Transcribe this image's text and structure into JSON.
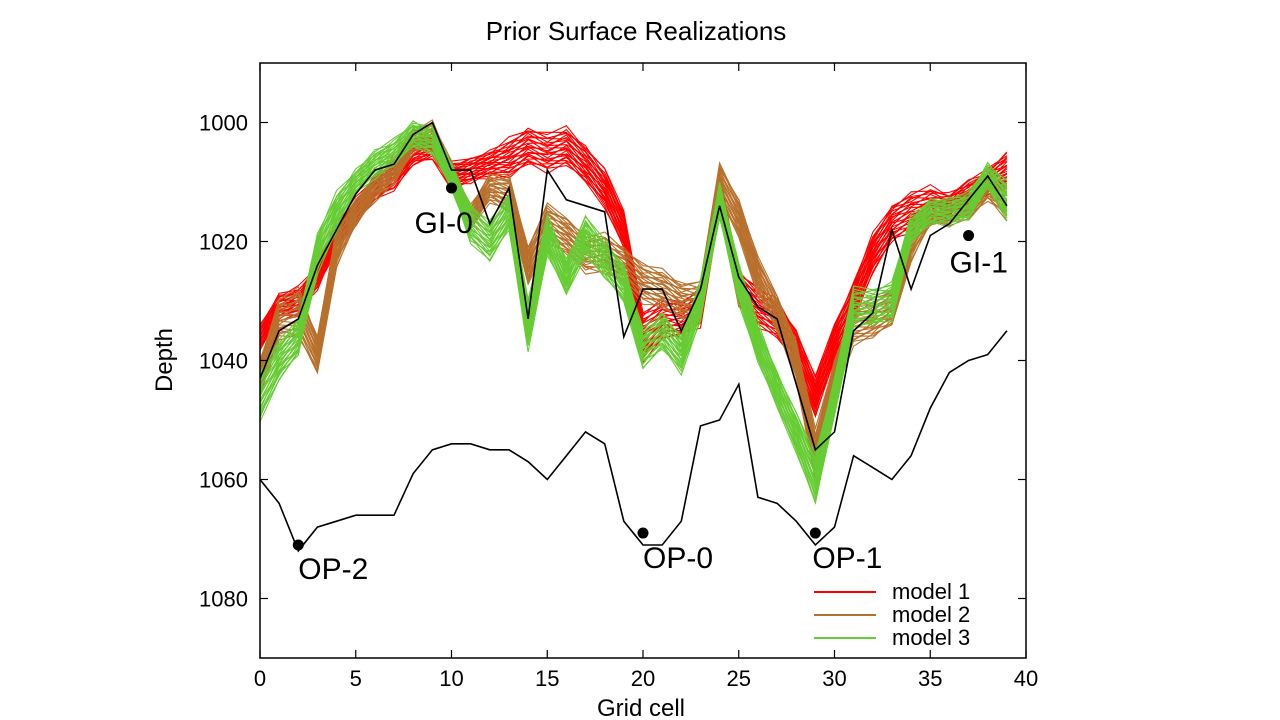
{
  "chart_data": {
    "type": "line",
    "title": "Prior Surface Realizations",
    "xlabel": "Grid cell",
    "ylabel": "Depth",
    "xlim": [
      0,
      40
    ],
    "ylim": [
      1090,
      990
    ],
    "y_inverted": true,
    "grid": false,
    "legend_position": "lower-right",
    "xticks": [
      "0",
      "5",
      "10",
      "15",
      "20",
      "25",
      "30",
      "35",
      "40"
    ],
    "yticks": [
      "1000",
      "1020",
      "1040",
      "1060",
      "1080"
    ],
    "x": [
      0,
      1,
      2,
      3,
      4,
      5,
      6,
      7,
      8,
      9,
      10,
      11,
      12,
      13,
      14,
      15,
      16,
      17,
      18,
      19,
      20,
      21,
      22,
      23,
      24,
      25,
      26,
      27,
      28,
      29,
      30,
      31,
      32,
      33,
      34,
      35,
      36,
      37,
      38,
      39
    ],
    "series": [
      {
        "name": "model 1",
        "color": "#ff0000",
        "center": [
          1036,
          1031,
          1030,
          1026,
          1019,
          1015,
          1011,
          1009,
          1005,
          1004,
          1009,
          1008,
          1007,
          1006,
          1004,
          1005,
          1004,
          1007,
          1011,
          1018,
          1036,
          1033,
          1033,
          1031,
          1012,
          1028,
          1031,
          1033,
          1038,
          1046,
          1037,
          1030,
          1022,
          1017,
          1015,
          1014,
          1014,
          1012,
          1010,
          1008
        ],
        "spread": [
          2,
          2,
          2,
          2,
          2,
          2,
          2,
          2,
          2,
          2,
          2,
          2,
          2,
          3,
          3,
          3,
          3,
          3,
          3,
          3,
          4,
          3,
          3,
          3,
          3,
          3,
          3,
          3,
          3,
          3,
          3,
          3,
          3,
          3,
          3,
          3,
          2,
          2,
          2,
          3
        ]
      },
      {
        "name": "model 2",
        "color": "#b8702c",
        "center": [
          1043,
          1033,
          1032,
          1039,
          1021,
          1015,
          1011,
          1008,
          1003,
          1002,
          1009,
          1016,
          1011,
          1012,
          1024,
          1017,
          1019,
          1022,
          1022,
          1024,
          1027,
          1028,
          1030,
          1030,
          1010,
          1016,
          1026,
          1032,
          1040,
          1056,
          1043,
          1034,
          1033,
          1031,
          1020,
          1015,
          1015,
          1014,
          1011,
          1013
        ],
        "spread": [
          3,
          3,
          4,
          3,
          3,
          2,
          2,
          2,
          2,
          2,
          2,
          2,
          2,
          3,
          3,
          3,
          3,
          3,
          3,
          3,
          3,
          3,
          3,
          3,
          3,
          3,
          3,
          3,
          3,
          4,
          3,
          3,
          3,
          3,
          3,
          2,
          2,
          2,
          2,
          3
        ]
      },
      {
        "name": "model 3",
        "color": "#66cc33",
        "center": [
          1046,
          1040,
          1036,
          1022,
          1015,
          1010,
          1007,
          1005,
          1002,
          1003,
          1009,
          1017,
          1020,
          1015,
          1034,
          1019,
          1026,
          1019,
          1023,
          1027,
          1038,
          1035,
          1039,
          1030,
          1013,
          1027,
          1037,
          1045,
          1052,
          1060,
          1046,
          1031,
          1031,
          1030,
          1018,
          1015,
          1015,
          1014,
          1009,
          1013
        ],
        "spread": [
          4,
          3,
          3,
          3,
          3,
          2,
          2,
          2,
          2,
          2,
          2,
          3,
          3,
          3,
          4,
          3,
          3,
          3,
          3,
          3,
          3,
          3,
          3,
          3,
          3,
          3,
          3,
          3,
          3,
          4,
          3,
          3,
          3,
          3,
          2,
          2,
          2,
          2,
          2,
          3
        ]
      }
    ],
    "reference_upper": [
      1043,
      1035,
      1033,
      1024,
      1018,
      1012,
      1008,
      1007,
      1002,
      1000,
      1008,
      1008,
      1017,
      1011,
      1033,
      1008,
      1013,
      1014,
      1015,
      1036,
      1028,
      1028,
      1035,
      1028,
      1014,
      1026,
      1031,
      1033,
      1044,
      1055,
      1052,
      1035,
      1032,
      1018,
      1028,
      1019,
      1017,
      1013,
      1009,
      1014
    ],
    "reference_lower": [
      1060,
      1064,
      1072,
      1068,
      1067,
      1066,
      1066,
      1066,
      1059,
      1055,
      1054,
      1054,
      1055,
      1055,
      1057,
      1060,
      1056,
      1052,
      1054,
      1067,
      1071,
      1071,
      1067,
      1051,
      1050,
      1044,
      1063,
      1064,
      1067,
      1071,
      1068,
      1056,
      1058,
      1060,
      1056,
      1048,
      1042,
      1040,
      1039,
      1035
    ],
    "wells": [
      {
        "label": "GI-0",
        "x": 10,
        "y": 1011
      },
      {
        "label": "GI-1",
        "x": 37,
        "y": 1019
      },
      {
        "label": "OP-2",
        "x": 2,
        "y": 1071
      },
      {
        "label": "OP-0",
        "x": 20,
        "y": 1069
      },
      {
        "label": "OP-1",
        "x": 29,
        "y": 1069
      }
    ]
  }
}
